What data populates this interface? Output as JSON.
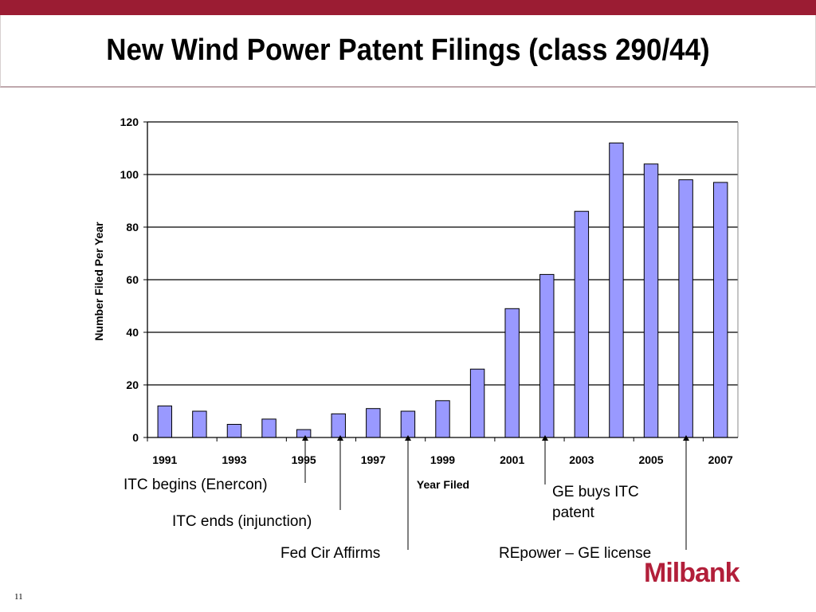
{
  "slide": {
    "title": "New Wind Power Patent Filings (class 290/44)",
    "page_number": "11",
    "logo_text": "Milbank",
    "brand_color": "#9b1c33",
    "logo_color": "#b21f3a"
  },
  "annotations": {
    "itc_begins": "ITC begins (Enercon)",
    "itc_ends": "ITC ends (injunction)",
    "fed_cir": "Fed Cir Affirms",
    "ge_buys_line1": "GE buys ITC",
    "ge_buys_line2": "patent",
    "repower": "REpower – GE license"
  },
  "chart_data": {
    "type": "bar",
    "categories": [
      1991,
      1992,
      1993,
      1994,
      1995,
      1996,
      1997,
      1998,
      1999,
      2000,
      2001,
      2002,
      2003,
      2004,
      2005,
      2006,
      2007
    ],
    "x_tick_labels": [
      "1991",
      "1993",
      "1995",
      "1997",
      "1999",
      "2001",
      "2003",
      "2005",
      "2007"
    ],
    "values": [
      12,
      10,
      5,
      7,
      3,
      9,
      11,
      10,
      14,
      26,
      49,
      62,
      86,
      112,
      104,
      98,
      97
    ],
    "xlabel": "Year Filed",
    "ylabel": "Number Filed Per Year",
    "ylim": [
      0,
      120
    ],
    "y_ticks": [
      0,
      20,
      40,
      60,
      80,
      100,
      120
    ],
    "grid": true,
    "bar_color": "#9999ff",
    "bar_outline": "#000000"
  }
}
